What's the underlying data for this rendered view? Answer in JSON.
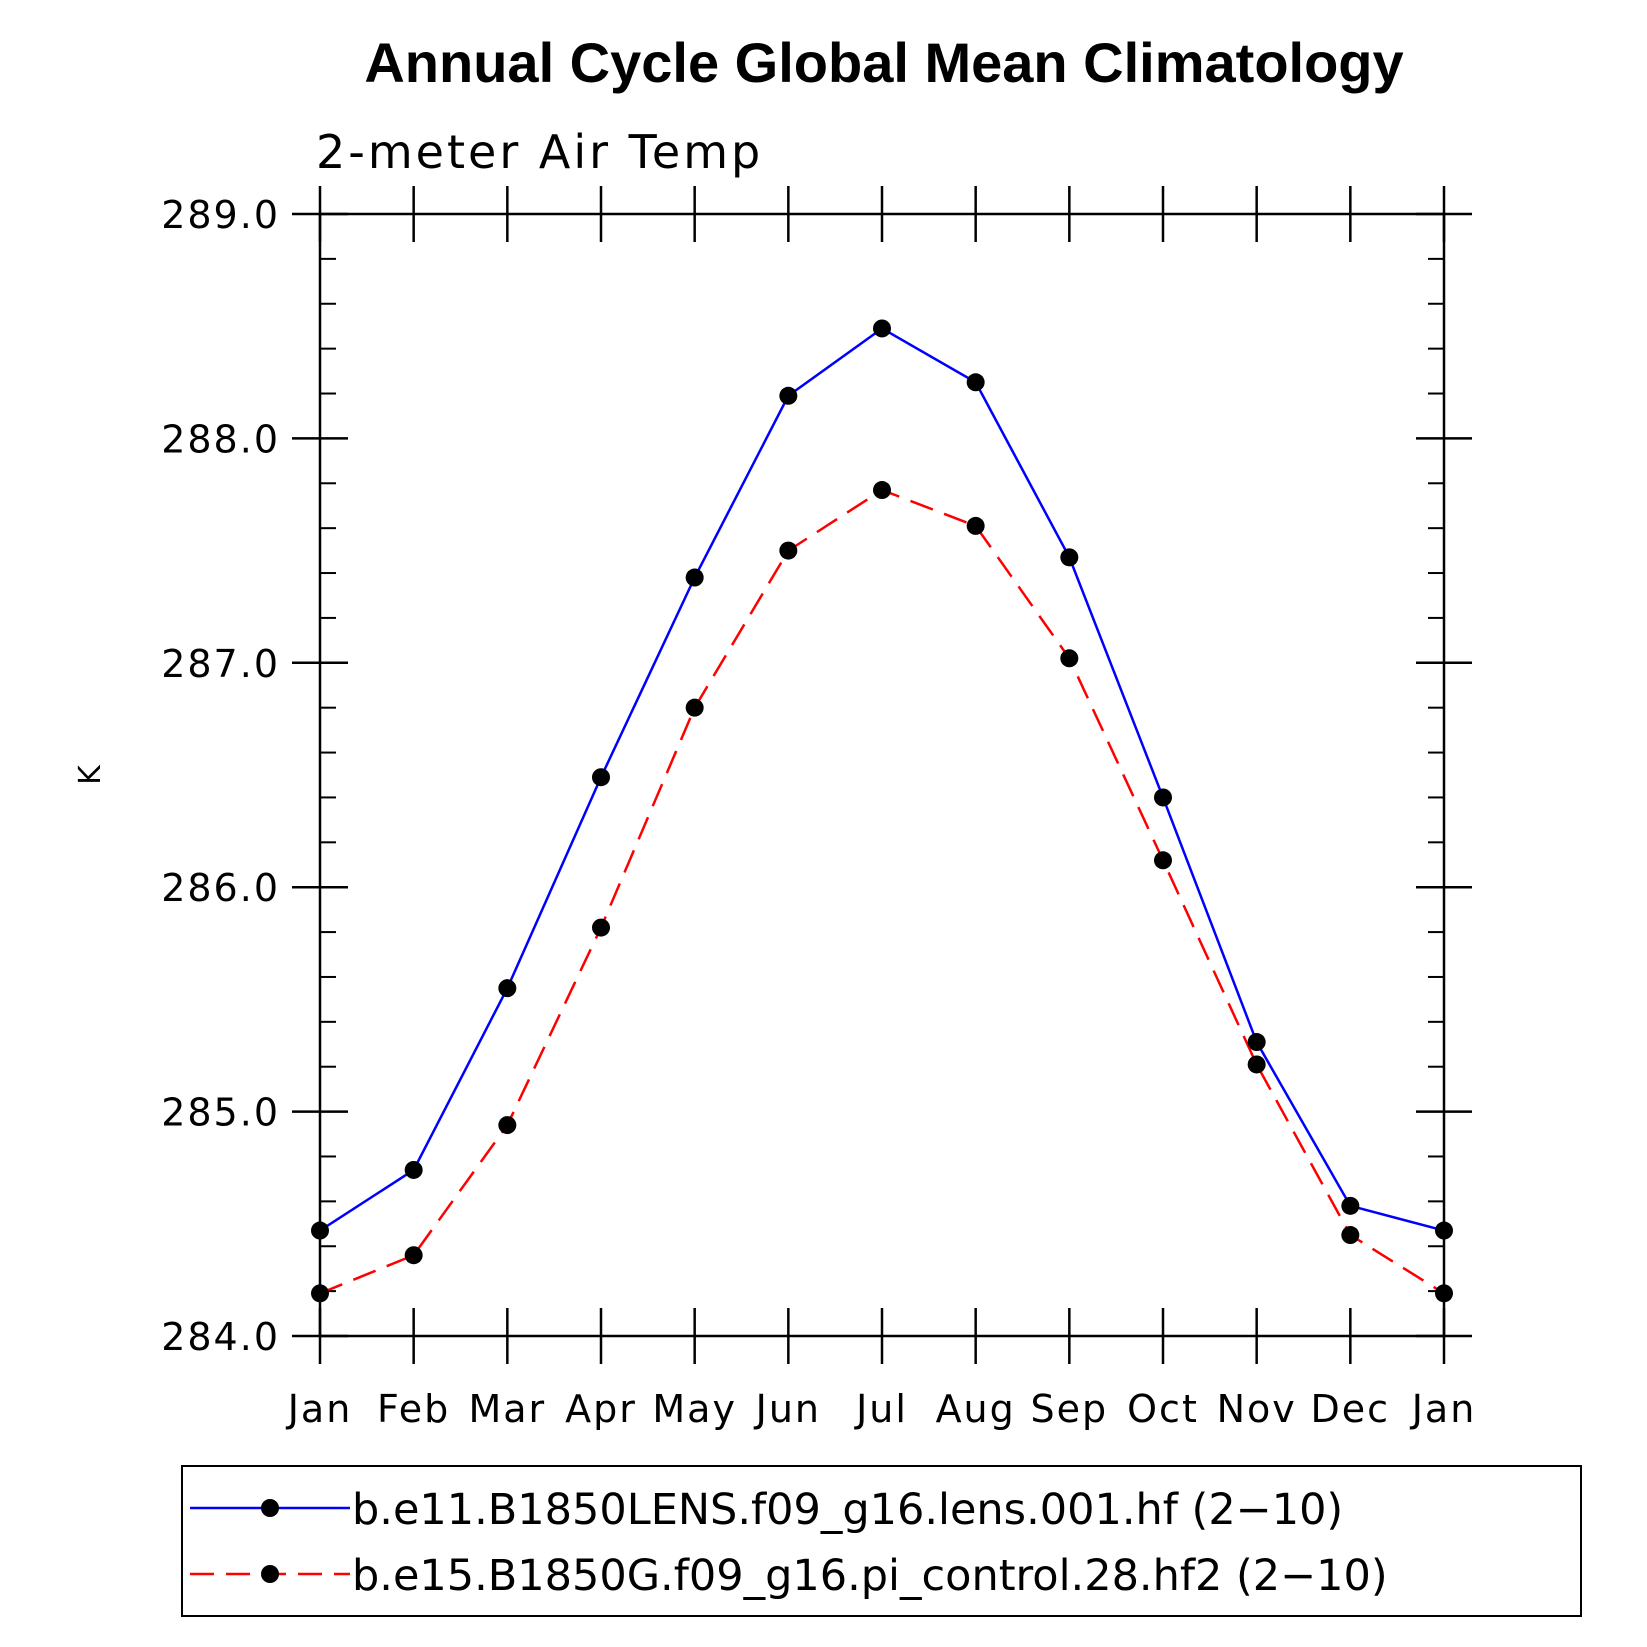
{
  "chart_data": {
    "type": "line",
    "title": "Annual Cycle Global Mean Climatology",
    "subtitle": "2-meter Air Temp",
    "xlabel": "",
    "ylabel": "K",
    "ylim": [
      284.0,
      289.0
    ],
    "yticks": [
      284.0,
      285.0,
      286.0,
      287.0,
      288.0,
      289.0
    ],
    "ytick_labels": [
      "284.0",
      "285.0",
      "286.0",
      "287.0",
      "288.0",
      "289.0"
    ],
    "categories": [
      "Jan",
      "Feb",
      "Mar",
      "Apr",
      "May",
      "Jun",
      "Jul",
      "Aug",
      "Sep",
      "Oct",
      "Nov",
      "Dec",
      "Jan"
    ],
    "grid": false,
    "legend_position": "bottom",
    "series": [
      {
        "name": "b.e11.B1850LENS.f09_g16.lens.001.hf (2−10)",
        "color": "#0000ff",
        "dash": "solid",
        "marker": "filled-circle",
        "values": [
          284.47,
          284.74,
          285.55,
          286.49,
          287.38,
          288.19,
          288.49,
          288.25,
          287.47,
          286.4,
          285.31,
          284.58,
          284.47
        ]
      },
      {
        "name": "b.e15.B1850G.f09_g16.pi_control.28.hf2 (2−10)",
        "color": "#ff0000",
        "dash": "dashed",
        "marker": "filled-circle",
        "values": [
          284.19,
          284.36,
          284.94,
          285.82,
          286.8,
          287.5,
          287.77,
          287.61,
          287.02,
          286.12,
          285.21,
          284.45,
          284.19
        ]
      }
    ]
  }
}
